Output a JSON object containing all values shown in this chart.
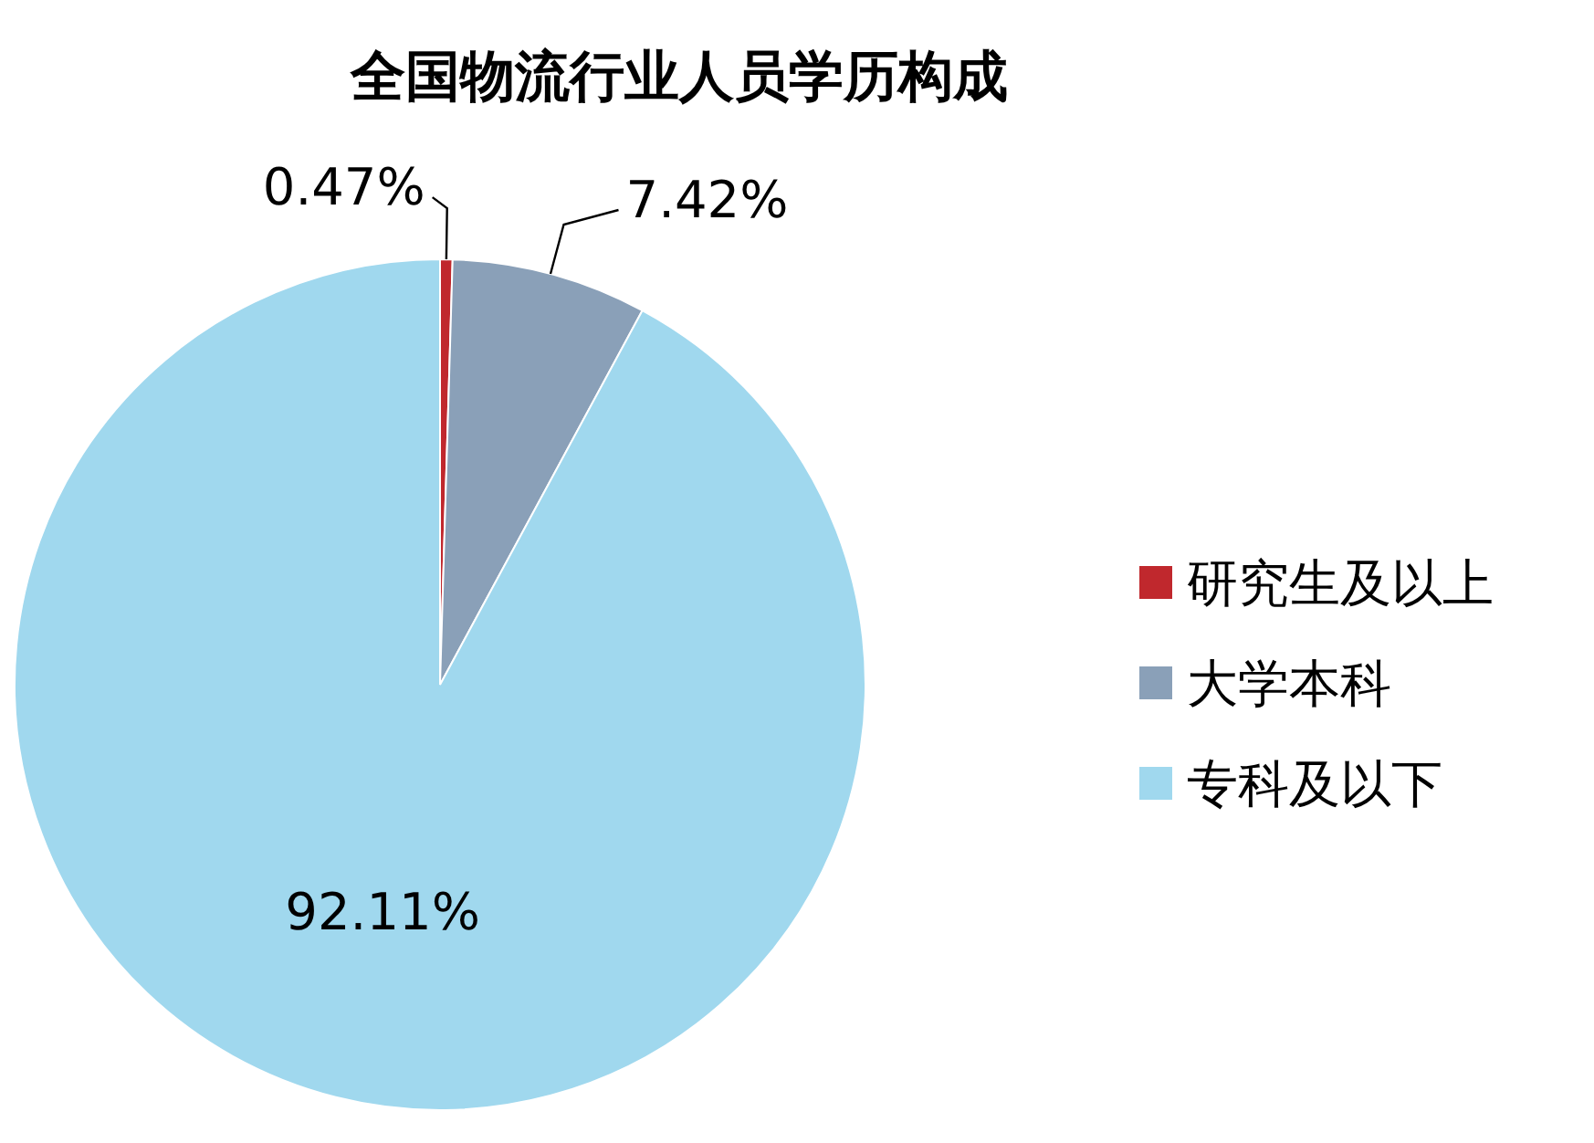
{
  "chart_data": {
    "type": "pie",
    "title": "全国物流行业人员学历构成",
    "categories": [
      "研究生及以上",
      "大学本科",
      "专科及以下"
    ],
    "values": [
      0.47,
      7.42,
      92.11
    ],
    "value_labels": [
      "0.47%",
      "7.42%",
      "92.11%"
    ],
    "colors": [
      "#c0282d",
      "#8aa0b8",
      "#a0d8ee"
    ],
    "legend": "right"
  }
}
